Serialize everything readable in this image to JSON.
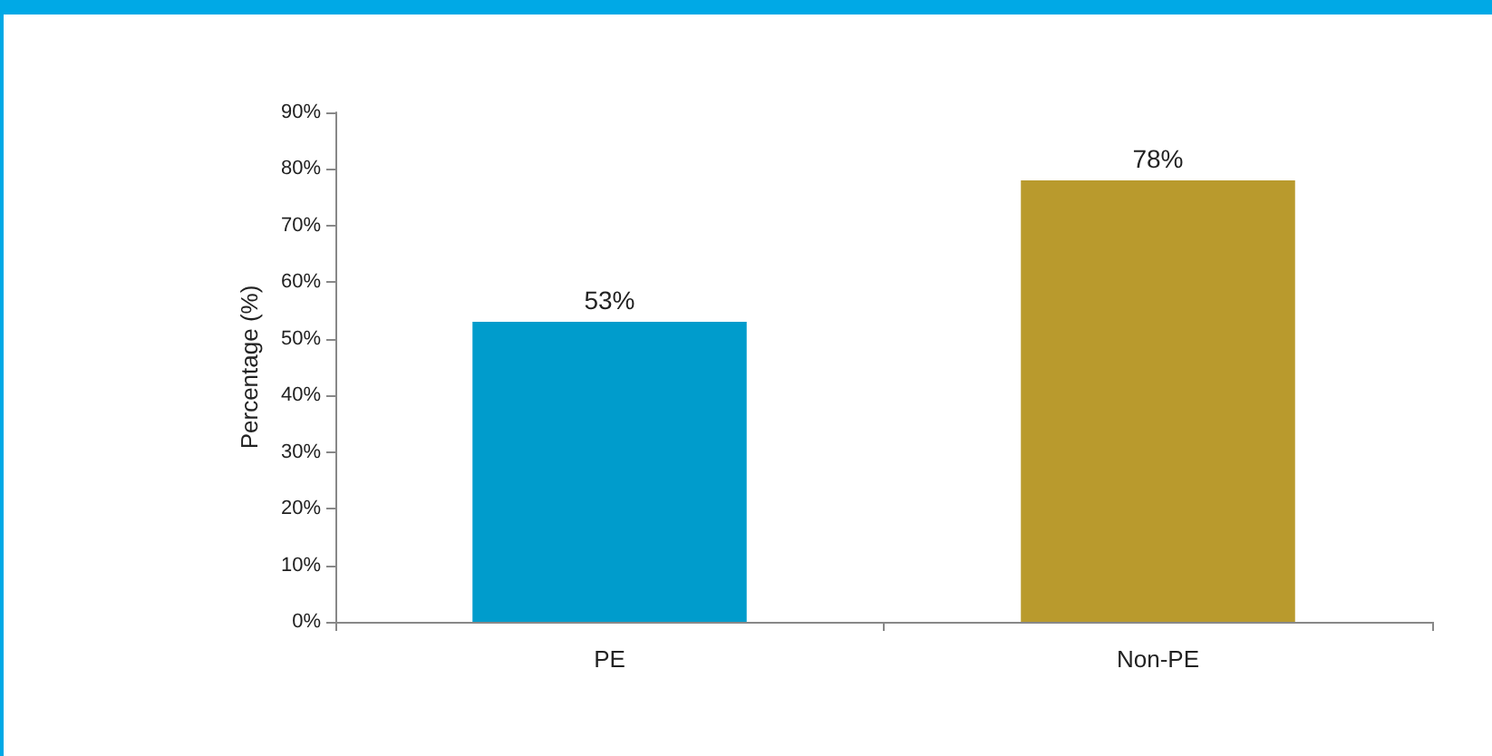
{
  "chart_data": {
    "type": "bar",
    "ylabel": "Percentage (%)",
    "categories": [
      "PE",
      "Non-PE"
    ],
    "values": [
      53,
      78
    ],
    "colors": [
      "#009ccc",
      "#b99a2d"
    ],
    "value_labels": [
      "53%",
      "78%"
    ],
    "ylim": [
      0,
      90
    ],
    "yticks": [
      {
        "value": 0,
        "label": "0%"
      },
      {
        "value": 10,
        "label": "10%"
      },
      {
        "value": 20,
        "label": "20%"
      },
      {
        "value": 30,
        "label": "30%"
      },
      {
        "value": 40,
        "label": "40%"
      },
      {
        "value": 50,
        "label": "50%"
      },
      {
        "value": 60,
        "label": "60%"
      },
      {
        "value": 70,
        "label": "70%"
      },
      {
        "value": 80,
        "label": "80%"
      },
      {
        "value": 90,
        "label": "90%"
      }
    ],
    "grid": false
  }
}
